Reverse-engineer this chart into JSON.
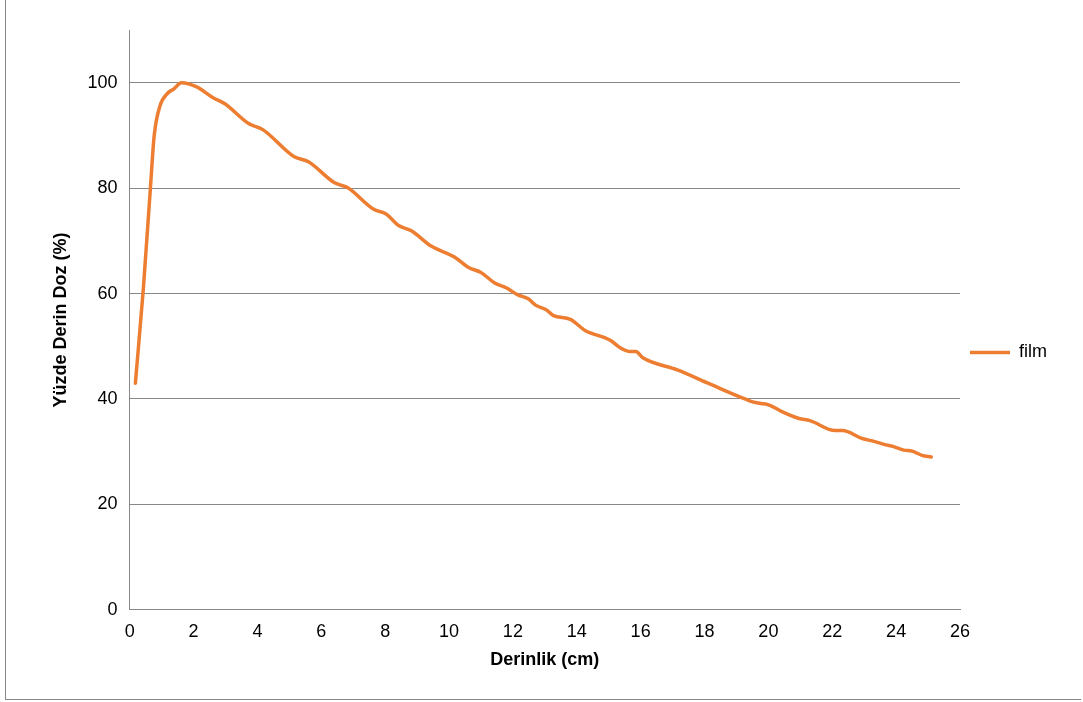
{
  "chart_data": {
    "type": "line",
    "xlabel": "Derinlik (cm)",
    "ylabel": "Yüzde Derin Doz (%)",
    "xlim": [
      0,
      26
    ],
    "xticks": [
      0,
      2,
      4,
      6,
      8,
      10,
      12,
      14,
      16,
      18,
      20,
      22,
      24,
      26
    ],
    "ylim": [
      0,
      110
    ],
    "yticks": [
      0,
      20,
      40,
      60,
      80,
      100
    ],
    "grid": "y",
    "legend": "right",
    "marker": "none",
    "line_style": "solid",
    "series": [
      {
        "name": "film",
        "color": "#ed7d31",
        "x": [
          0.18,
          0.43,
          0.65,
          0.77,
          0.95,
          1.19,
          1.38,
          1.62,
          2.1,
          2.6,
          2.98,
          3.74,
          4.17,
          5.14,
          5.6,
          6.42,
          6.82,
          7.64,
          8.03,
          8.42,
          8.82,
          9.44,
          10.18,
          10.63,
          11.0,
          11.43,
          11.82,
          12.14,
          12.48,
          12.71,
          13.05,
          13.27,
          13.8,
          14.26,
          15.06,
          15.34,
          15.68,
          15.85,
          16.07,
          17.15,
          18.18,
          19.31,
          19.54,
          20.05,
          20.39,
          20.96,
          21.3,
          22.09,
          22.32,
          22.94,
          23.28,
          23.68,
          23.9,
          24.24,
          24.5,
          24.81,
          25.1
        ],
        "values": [
          43,
          61,
          80,
          90,
          95.6,
          98,
          98.8,
          100,
          99.2,
          97.2,
          96,
          92.2,
          91.1,
          86,
          85,
          81,
          80.1,
          76,
          75.1,
          72.9,
          71.9,
          69,
          66.9,
          64.9,
          64,
          62,
          61,
          59.8,
          59,
          57.8,
          56.9,
          55.8,
          55.1,
          53,
          51.1,
          49.8,
          49,
          49,
          47.8,
          45.5,
          42.8,
          39.9,
          39.4,
          38.8,
          37.7,
          36.3,
          35.9,
          34,
          34,
          32.5,
          32,
          31.3,
          31,
          30.3,
          30.1,
          29.3,
          29
        ]
      }
    ]
  }
}
